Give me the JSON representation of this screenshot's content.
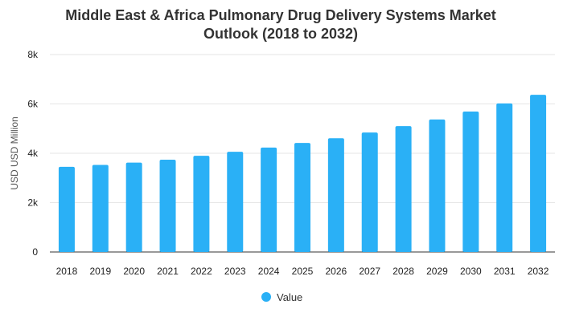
{
  "chart_data": {
    "type": "bar",
    "title_lines": [
      "Middle East & Africa Pulmonary Drug Delivery Systems Market",
      "Outlook (2018 to 2032)"
    ],
    "xlabel": "",
    "ylabel": "USD USD Million",
    "categories": [
      "2018",
      "2019",
      "2020",
      "2021",
      "2022",
      "2023",
      "2024",
      "2025",
      "2026",
      "2027",
      "2028",
      "2029",
      "2030",
      "2031",
      "2032"
    ],
    "series": [
      {
        "name": "Value",
        "color": "#2ab0f6",
        "values": [
          3450,
          3530,
          3620,
          3740,
          3900,
          4060,
          4230,
          4420,
          4610,
          4840,
          5100,
          5370,
          5690,
          6020,
          6370
        ]
      }
    ],
    "ylim": [
      0,
      8000
    ],
    "yticks": [
      0,
      2000,
      4000,
      6000,
      8000
    ],
    "ytick_labels": [
      "0",
      "2k",
      "4k",
      "6k",
      "8k"
    ],
    "grid": true,
    "legend_position": "bottom-center"
  }
}
